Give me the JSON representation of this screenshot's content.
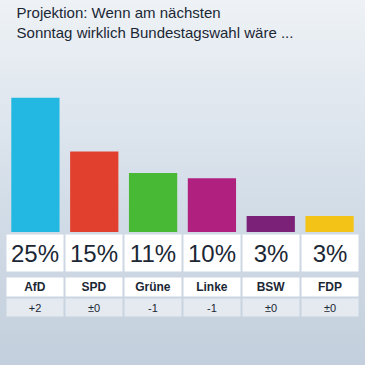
{
  "chart_data": {
    "type": "bar",
    "title": "Projektion: Wenn am nächsten\nSonntag wirklich Bundestagswahl wäre ...",
    "categories": [
      "AfD",
      "SPD",
      "Grüne",
      "Linke",
      "BSW",
      "FDP"
    ],
    "values": [
      25,
      15,
      11,
      10,
      3,
      3
    ],
    "value_labels": [
      "25%",
      "15%",
      "11%",
      "10%",
      "3%",
      "3%"
    ],
    "annotations": [
      "+2",
      "±0",
      "-1",
      "-1",
      "±0",
      "±0"
    ],
    "colors": [
      "#22b8e2",
      "#e2402f",
      "#47b935",
      "#b0207f",
      "#7b2177",
      "#f3c318"
    ],
    "ylim": [
      0,
      27
    ],
    "grid": false,
    "data_labels": true,
    "tick_labels": false
  }
}
